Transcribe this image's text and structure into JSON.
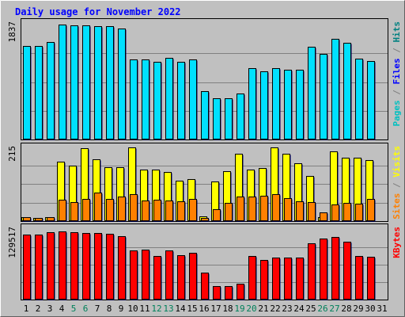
{
  "chart_data": {
    "type": "bar",
    "title": "Daily usage for November 2022",
    "days": [
      "1",
      "2",
      "3",
      "4",
      "5",
      "6",
      "7",
      "8",
      "9",
      "10",
      "11",
      "12",
      "13",
      "14",
      "15",
      "16",
      "17",
      "18",
      "19",
      "20",
      "21",
      "22",
      "23",
      "24",
      "25",
      "26",
      "27",
      "28",
      "29",
      "30",
      "31"
    ],
    "weekend_days": [
      "5",
      "6",
      "12",
      "13",
      "19",
      "20",
      "26",
      "27"
    ],
    "panels": [
      {
        "id": "top",
        "ymax": 1837,
        "ymax_label": "1837",
        "right_label": [
          {
            "text": "Pages",
            "color": "#00c0c0"
          },
          {
            "text": " / ",
            "color": "#808080"
          },
          {
            "text": "Files",
            "color": "#0000ff"
          },
          {
            "text": " / ",
            "color": "#808080"
          },
          {
            "text": "Hits",
            "color": "#008080"
          }
        ],
        "series": [
          {
            "key": "hits",
            "color": "#00e0ff",
            "values": [
              1497,
              1497,
              1564,
              1837,
              1822,
              1822,
              1807,
              1815,
              1777,
              1282,
              1282,
              1239,
              1306,
              1245,
              1282,
              777,
              663,
              663,
              732,
              1144,
              1095,
              1136,
              1113,
              1113,
              1480,
              1366,
              1611,
              1542,
              1291,
              1259,
              0
            ]
          }
        ]
      },
      {
        "id": "middle",
        "ymax": 215,
        "ymax_label": "215",
        "right_label": [
          {
            "text": "Sites",
            "color": "#ff8000"
          },
          {
            "text": " / ",
            "color": "#808080"
          },
          {
            "text": "Visits",
            "color": "#ffff00"
          }
        ],
        "series": [
          {
            "key": "visits",
            "color": "#ffff00",
            "values": [
              12,
              10,
              12,
              171,
              161,
              210,
              179,
              156,
              155,
              212,
              148,
              148,
              142,
              116,
              122,
              13,
              115,
              144,
              195,
              148,
              153,
              213,
              194,
              167,
              130,
              12,
              202,
              183,
              183,
              175,
              0
            ]
          },
          {
            "key": "sites",
            "color": "#ff8000",
            "values": [
              12,
              10,
              12,
              61,
              56,
              63,
              82,
              65,
              71,
              77,
              60,
              61,
              60,
              57,
              63,
              10,
              35,
              52,
              71,
              70,
              73,
              78,
              67,
              58,
              56,
              25,
              48,
              52,
              51,
              64,
              0
            ]
          }
        ]
      },
      {
        "id": "bottom",
        "ymax": 129517,
        "ymax_label": "129517",
        "right_label": [
          {
            "text": "KBytes",
            "color": "#ff0000"
          }
        ],
        "series": [
          {
            "key": "kbytes",
            "color": "#ff0000",
            "values": [
              121000,
              121000,
              125500,
              127000,
              125000,
              124000,
              123000,
              122000,
              117500,
              91000,
              92000,
              81000,
              91000,
              82000,
              87000,
              50000,
              25000,
              25000,
              30000,
              80500,
              74000,
              77500,
              77500,
              77500,
              104000,
              113000,
              116500,
              107500,
              80500,
              80000,
              0
            ]
          }
        ]
      }
    ]
  }
}
